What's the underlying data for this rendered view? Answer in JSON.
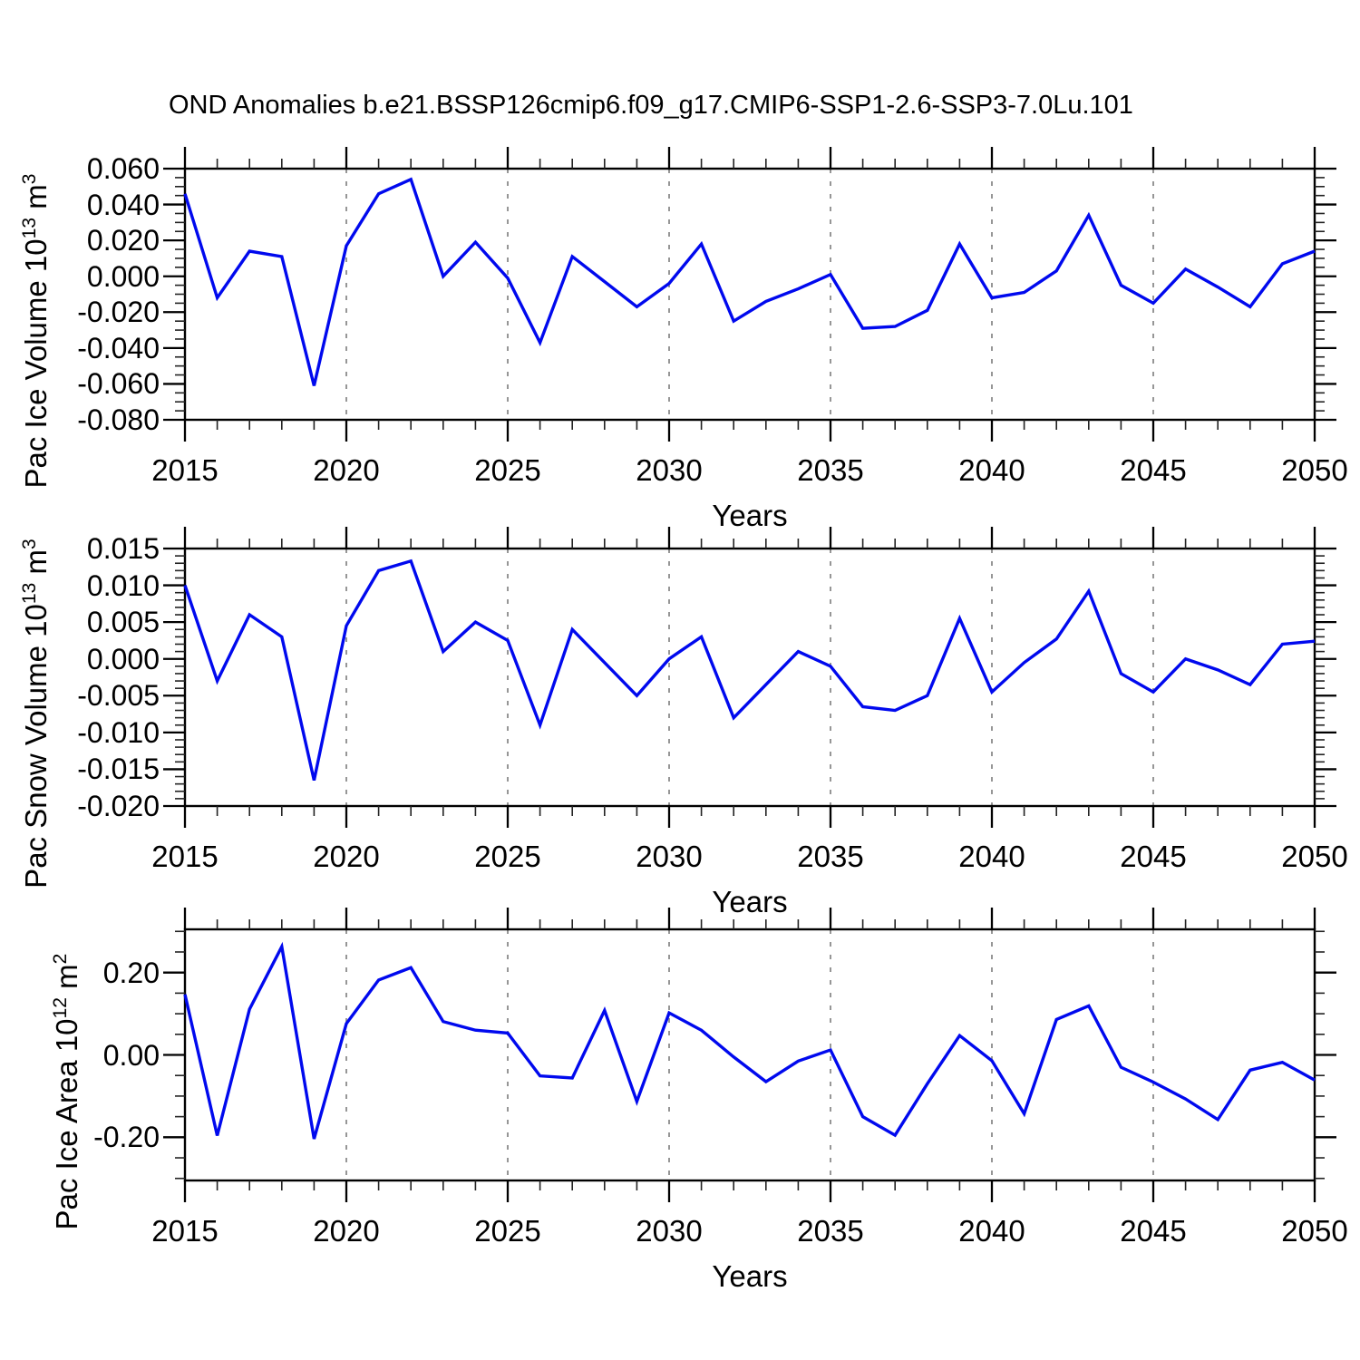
{
  "title": "OND Anomalies b.e21.BSSP126cmip6.f09_g17.CMIP6-SSP1-2.6-SSP3-7.0Lu.101",
  "x_axis_title": "Years",
  "x_tick_labels": [
    "2015",
    "2020",
    "2025",
    "2030",
    "2035",
    "2040",
    "2045",
    "2050"
  ],
  "colors": {
    "line": "#0009ee",
    "grid": "#8a8a8a",
    "axis": "#000000",
    "minor_tick": "#222222",
    "text": "#000000",
    "background": "#ffffff"
  },
  "years": [
    2015,
    2016,
    2017,
    2018,
    2019,
    2020,
    2021,
    2022,
    2023,
    2024,
    2025,
    2026,
    2027,
    2028,
    2029,
    2030,
    2031,
    2032,
    2033,
    2034,
    2035,
    2036,
    2037,
    2038,
    2039,
    2040,
    2041,
    2042,
    2043,
    2044,
    2045,
    2046,
    2047,
    2048,
    2049,
    2050
  ],
  "grid_years": [
    2020,
    2025,
    2030,
    2035,
    2040,
    2045
  ],
  "chart_data": [
    {
      "type": "line",
      "name": "pac-ice-volume",
      "ylabel_segments": [
        {
          "text": "Pac Ice Volume 10",
          "sup": false
        },
        {
          "text": "13",
          "sup": true
        },
        {
          "text": " m",
          "sup": false
        },
        {
          "text": "3",
          "sup": true
        }
      ],
      "xlabel": "Years",
      "ylim": [
        -0.08,
        0.06
      ],
      "xlim": [
        2015,
        2050
      ],
      "ytick_values": [
        0.06,
        0.04,
        0.02,
        0.0,
        -0.02,
        -0.04,
        -0.06,
        -0.08
      ],
      "ytick_labels": [
        "0.060",
        "0.040",
        "0.020",
        "0.000",
        "-0.020",
        "-0.040",
        "-0.060",
        "-0.080"
      ],
      "y_minor_step": 0.005,
      "grid": "vertical-dashed",
      "legend": "none",
      "values": [
        0.046,
        -0.012,
        0.014,
        0.011,
        -0.061,
        0.017,
        0.046,
        0.054,
        0.0,
        0.019,
        -0.001,
        -0.037,
        0.011,
        -0.003,
        -0.017,
        -0.004,
        0.018,
        -0.025,
        -0.014,
        -0.007,
        0.001,
        -0.029,
        -0.028,
        -0.019,
        0.018,
        -0.012,
        -0.009,
        0.003,
        0.034,
        -0.005,
        -0.015,
        0.004,
        -0.006,
        -0.017,
        0.007,
        0.014
      ]
    },
    {
      "type": "line",
      "name": "pac-snow-volume",
      "ylabel_segments": [
        {
          "text": "Pac Snow Volume 10",
          "sup": false
        },
        {
          "text": "13",
          "sup": true
        },
        {
          "text": " m",
          "sup": false
        },
        {
          "text": "3",
          "sup": true
        }
      ],
      "xlabel": "Years",
      "ylim": [
        -0.02,
        0.015
      ],
      "xlim": [
        2015,
        2050
      ],
      "ytick_values": [
        0.015,
        0.01,
        0.005,
        0.0,
        -0.005,
        -0.01,
        -0.015,
        -0.02
      ],
      "ytick_labels": [
        "0.015",
        "0.010",
        "0.005",
        "0.000",
        "-0.005",
        "-0.010",
        "-0.015",
        "-0.020"
      ],
      "y_minor_step": 0.001,
      "grid": "vertical-dashed",
      "legend": "none",
      "values": [
        0.01,
        -0.003,
        0.006,
        0.003,
        -0.0165,
        0.0045,
        0.012,
        0.0133,
        0.001,
        0.005,
        0.0025,
        -0.009,
        0.004,
        -0.0005,
        -0.005,
        0.0,
        0.003,
        -0.008,
        -0.0035,
        0.001,
        -0.001,
        -0.0065,
        -0.007,
        -0.005,
        0.0055,
        -0.0045,
        -0.0005,
        0.0027,
        0.0092,
        -0.002,
        -0.0045,
        0.0,
        -0.0015,
        -0.0035,
        0.002,
        0.0024
      ]
    },
    {
      "type": "line",
      "name": "pac-ice-area",
      "ylabel_segments": [
        {
          "text": "Pac Ice Area 10",
          "sup": false
        },
        {
          "text": "12",
          "sup": true
        },
        {
          "text": " m",
          "sup": false
        },
        {
          "text": "2",
          "sup": true
        }
      ],
      "xlabel": "Years",
      "ylim": [
        -0.305,
        0.305
      ],
      "xlim": [
        2015,
        2050
      ],
      "ytick_values": [
        0.2,
        0.0,
        -0.2
      ],
      "ytick_labels": [
        "0.20",
        "0.00",
        "-0.20"
      ],
      "y_minor_step": 0.05,
      "grid": "vertical-dashed",
      "legend": "none",
      "values": [
        0.147,
        -0.196,
        0.111,
        0.263,
        -0.204,
        0.076,
        0.182,
        0.212,
        0.081,
        0.06,
        0.053,
        -0.051,
        -0.056,
        0.108,
        -0.113,
        0.102,
        0.06,
        -0.005,
        -0.065,
        -0.015,
        0.012,
        -0.15,
        -0.195,
        -0.07,
        0.047,
        -0.014,
        -0.143,
        0.086,
        0.119,
        -0.03,
        -0.066,
        -0.107,
        -0.157,
        -0.037,
        -0.018,
        -0.061
      ]
    }
  ]
}
